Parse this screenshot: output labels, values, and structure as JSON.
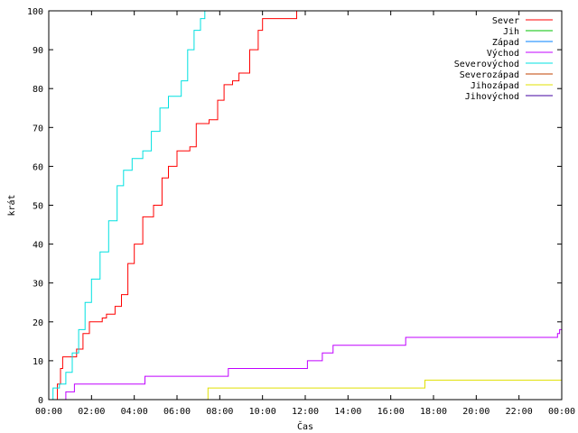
{
  "chart_data": {
    "type": "line",
    "title": "",
    "xlabel": "Čas",
    "ylabel": "krát",
    "xlim": [
      0,
      24
    ],
    "ylim": [
      0,
      100
    ],
    "grid": false,
    "legend_position": "top-right",
    "x_ticks": [
      0,
      2,
      4,
      6,
      8,
      10,
      12,
      14,
      16,
      18,
      20,
      22,
      24
    ],
    "x_tick_labels": [
      "00:00",
      "02:00",
      "04:00",
      "06:00",
      "08:00",
      "10:00",
      "12:00",
      "14:00",
      "16:00",
      "18:00",
      "20:00",
      "22:00",
      "00:00"
    ],
    "y_ticks": [
      0,
      10,
      20,
      30,
      40,
      50,
      60,
      70,
      80,
      90,
      100
    ],
    "y_tick_labels": [
      "0",
      "10",
      "20",
      "30",
      "40",
      "50",
      "60",
      "70",
      "80",
      "90",
      "100"
    ],
    "series": [
      {
        "name": "Sever",
        "color": "#ff0000",
        "points": [
          [
            0.25,
            0
          ],
          [
            0.4,
            4
          ],
          [
            0.55,
            8
          ],
          [
            0.65,
            11
          ],
          [
            1.0,
            11
          ],
          [
            1.3,
            13
          ],
          [
            1.6,
            17
          ],
          [
            1.9,
            20
          ],
          [
            2.5,
            21
          ],
          [
            2.7,
            22
          ],
          [
            3.1,
            24
          ],
          [
            3.4,
            27
          ],
          [
            3.7,
            35
          ],
          [
            4.0,
            40
          ],
          [
            4.4,
            47
          ],
          [
            4.9,
            50
          ],
          [
            5.3,
            57
          ],
          [
            5.6,
            60
          ],
          [
            6.0,
            64
          ],
          [
            6.6,
            65
          ],
          [
            6.9,
            71
          ],
          [
            7.5,
            72
          ],
          [
            7.9,
            77
          ],
          [
            8.2,
            81
          ],
          [
            8.6,
            82
          ],
          [
            8.9,
            84
          ],
          [
            9.4,
            90
          ],
          [
            9.8,
            95
          ],
          [
            10.0,
            98
          ],
          [
            11.6,
            100
          ],
          [
            11.65,
            100
          ]
        ]
      },
      {
        "name": "Jih",
        "color": "#00c000",
        "points": []
      },
      {
        "name": "Západ",
        "color": "#0080ff",
        "points": []
      },
      {
        "name": "Východ",
        "color": "#c000ff",
        "points": [
          [
            0.7,
            0
          ],
          [
            0.8,
            2
          ],
          [
            1.2,
            4
          ],
          [
            4.5,
            6
          ],
          [
            8.4,
            8
          ],
          [
            12.1,
            10
          ],
          [
            12.8,
            12
          ],
          [
            13.3,
            14
          ],
          [
            16.7,
            16
          ],
          [
            23.8,
            17
          ],
          [
            23.9,
            18
          ],
          [
            24,
            18
          ]
        ]
      },
      {
        "name": "Severovýchod",
        "color": "#00e0e0",
        "points": [
          [
            0.1,
            0
          ],
          [
            0.2,
            3
          ],
          [
            0.5,
            4
          ],
          [
            0.8,
            7
          ],
          [
            1.1,
            12
          ],
          [
            1.4,
            18
          ],
          [
            1.7,
            25
          ],
          [
            2.0,
            31
          ],
          [
            2.4,
            38
          ],
          [
            2.8,
            46
          ],
          [
            3.2,
            55
          ],
          [
            3.5,
            59
          ],
          [
            3.9,
            62
          ],
          [
            4.4,
            64
          ],
          [
            4.8,
            69
          ],
          [
            5.2,
            75
          ],
          [
            5.6,
            78
          ],
          [
            6.2,
            82
          ],
          [
            6.5,
            90
          ],
          [
            6.8,
            95
          ],
          [
            7.1,
            98
          ],
          [
            7.3,
            100
          ],
          [
            7.35,
            100
          ]
        ]
      },
      {
        "name": "Severozápad",
        "color": "#c04000",
        "points": []
      },
      {
        "name": "Jihozápad",
        "color": "#e0e000",
        "points": [
          [
            7.4,
            0
          ],
          [
            7.45,
            3
          ],
          [
            17.6,
            5
          ],
          [
            24,
            5
          ]
        ]
      },
      {
        "name": "Jihovýchod",
        "color": "#4000a0",
        "points": []
      }
    ]
  }
}
